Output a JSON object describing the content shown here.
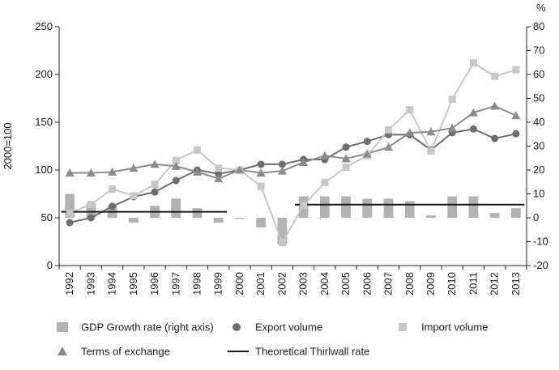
{
  "chart_data": {
    "type": "combo",
    "categories": [
      "1992",
      "1993",
      "1994",
      "1995",
      "1996",
      "1997",
      "1998",
      "1999",
      "2000",
      "2001",
      "2002",
      "2003",
      "2004",
      "2005",
      "2006",
      "2007",
      "2008",
      "2009",
      "2010",
      "2011",
      "2012",
      "2013"
    ],
    "left_axis": {
      "label": "2000=100",
      "min": 0,
      "max": 250,
      "ticks": [
        "0",
        "50",
        "100",
        "150",
        "200",
        "250"
      ]
    },
    "right_axis": {
      "label": "%",
      "min": -20,
      "max": 80,
      "ticks": [
        "-20",
        "-10",
        "0",
        "10",
        "20",
        "30",
        "40",
        "50",
        "60",
        "70",
        "80"
      ]
    },
    "series": [
      {
        "name": "GDP Growth rate (right axis)",
        "type": "bar",
        "axis": "right",
        "color": "#b3b3b3",
        "values": [
          10,
          6,
          5,
          -2,
          5,
          8,
          4,
          -2,
          -0.5,
          -4,
          -11,
          9,
          9,
          9,
          8,
          8,
          7,
          1,
          9,
          9,
          2,
          4
        ]
      },
      {
        "name": "Export volume",
        "type": "line",
        "axis": "left",
        "color": "#6e6e6e",
        "marker": "circle",
        "values": [
          45,
          50,
          62,
          72,
          77,
          89,
          100,
          96,
          100,
          106,
          106,
          111,
          111,
          124,
          130,
          137,
          137,
          121,
          139,
          143,
          133,
          138
        ]
      },
      {
        "name": "Import volume",
        "type": "line",
        "axis": "left",
        "color": "#c8c8c8",
        "marker": "square",
        "values": [
          55,
          64,
          80,
          73,
          85,
          110,
          121,
          102,
          100,
          83,
          24,
          63,
          87,
          103,
          115,
          142,
          163,
          120,
          174,
          212,
          198,
          205
        ]
      },
      {
        "name": "Terms of exchange",
        "type": "line",
        "axis": "left",
        "color": "#8c8c8c",
        "marker": "triangle",
        "values": [
          97,
          97,
          98,
          102,
          106,
          104,
          98,
          91,
          100,
          97,
          99,
          108,
          115,
          112,
          117,
          124,
          139,
          140,
          144,
          160,
          167,
          157
        ]
      },
      {
        "name": "Theoretical Thirlwall rate",
        "type": "step",
        "axis": "right",
        "color": "#1a1a1a",
        "segments": [
          {
            "from": "1992",
            "to": "1999",
            "value": 2.5
          },
          {
            "from": "2003",
            "to": "2013",
            "value": 5.5
          }
        ]
      }
    ],
    "legend": {
      "placement": "bottom"
    },
    "grid": false
  }
}
